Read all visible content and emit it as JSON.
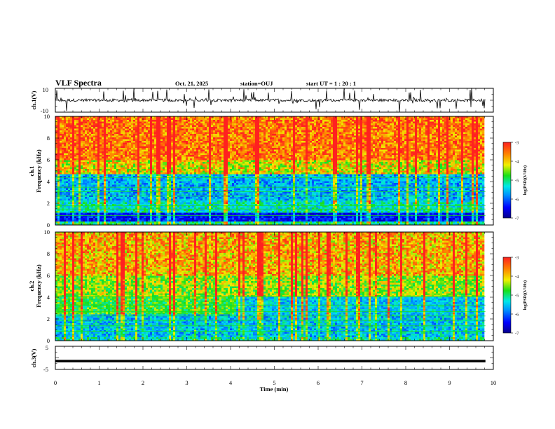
{
  "header": {
    "title": "VLF Spectra",
    "date": "Oct. 21, 2025",
    "station": "station=OUJ",
    "start": "start UT =  1 : 20 : 1"
  },
  "chart_data": [
    {
      "type": "line",
      "panel": "ch1-waveform",
      "ylabel": "ch.1(V)",
      "yticks": [
        "10",
        "-10"
      ],
      "ylim": [
        -10,
        10
      ],
      "xlim": [
        0,
        10
      ],
      "color": "#000000",
      "description_values": "noisy trace centred near 0 V with spikes"
    },
    {
      "type": "heatmap",
      "panel": "ch1-spectrogram",
      "ylabel_line1": "ch.1",
      "ylabel_line2": "Frequency (kHz)",
      "yticks": [
        "0",
        "2",
        "4",
        "6",
        "8",
        "10"
      ],
      "ylim": [
        0,
        10
      ],
      "xlim": [
        0,
        10
      ],
      "colorbar": {
        "label": "log(PSD)(V²/Hz)",
        "ticks": [
          "-3",
          "-4",
          "-5",
          "-6",
          "-7"
        ],
        "range": [
          -7,
          -3
        ]
      }
    },
    {
      "type": "heatmap",
      "panel": "ch2-spectrogram",
      "ylabel_line1": "ch.2",
      "ylabel_line2": "Frequency (kHz)",
      "yticks": [
        "0",
        "2",
        "4",
        "6",
        "8",
        "10"
      ],
      "ylim": [
        0,
        10
      ],
      "xlim": [
        0,
        10
      ],
      "colorbar": {
        "label": "log(PSD)(V²/Hz)",
        "ticks": [
          "-3",
          "-4",
          "-5",
          "-6",
          "-7"
        ],
        "range": [
          -7,
          -3
        ]
      }
    },
    {
      "type": "line",
      "panel": "ch3-waveform",
      "ylabel": "ch.3(V)",
      "yticks": [
        "5",
        "-5"
      ],
      "ylim": [
        -5,
        5
      ],
      "xlim": [
        0,
        10
      ],
      "level": -1.4,
      "color": "#000000"
    }
  ],
  "xaxis": {
    "label": "Time (min)",
    "ticks": [
      "0",
      "1",
      "2",
      "3",
      "4",
      "5",
      "6",
      "7",
      "8",
      "9",
      "10"
    ]
  },
  "colors": {
    "scale": [
      "#06008a",
      "#0000ff",
      "#0090ff",
      "#00e8e8",
      "#18e018",
      "#f0f000",
      "#ff8000",
      "#ff2020"
    ]
  }
}
